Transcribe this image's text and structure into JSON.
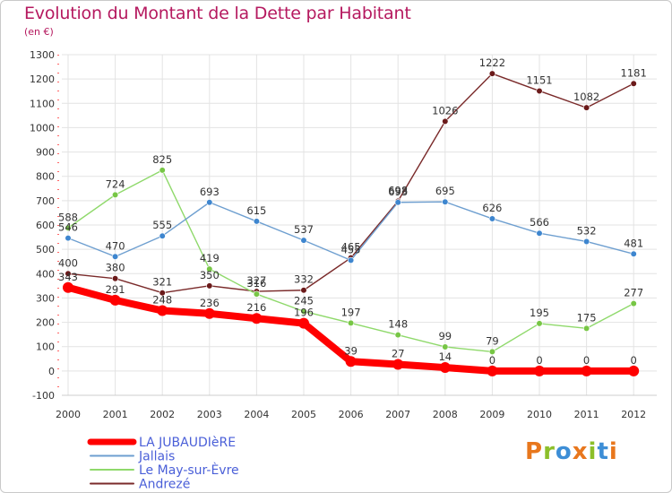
{
  "header": {
    "title": "Evolution du Montant de la Dette par Habitant",
    "subtitle": "(en €)"
  },
  "logo": {
    "text": "Proxiti",
    "colors": [
      "#e8771d",
      "#8cbf2a",
      "#3d8ed6",
      "#e8771d",
      "#8cbf2a",
      "#3d8ed6",
      "#e8771d"
    ]
  },
  "chart_data": {
    "type": "line",
    "x": [
      "2000",
      "2001",
      "2002",
      "2003",
      "2004",
      "2005",
      "2006",
      "2007",
      "2008",
      "2009",
      "2010",
      "2011",
      "2012"
    ],
    "ylim": [
      -100,
      1300
    ],
    "yticks": [
      -100,
      0,
      100,
      200,
      300,
      400,
      500,
      600,
      700,
      800,
      900,
      1000,
      1100,
      1200,
      1300
    ],
    "grid": true,
    "legend_position": "bottom-left",
    "series": [
      {
        "name": "Andrezé",
        "color": "#7a2a2a",
        "marker": "#6b1a1a",
        "values": [
          400,
          380,
          321,
          350,
          327,
          332,
          465,
          698,
          1026,
          1222,
          1151,
          1082,
          1181
        ],
        "labels": [
          "400",
          "380",
          "321",
          "350",
          "327",
          "332",
          "465",
          "698",
          "1026",
          "1222",
          "1151",
          "1082",
          "1181"
        ]
      },
      {
        "name": "Le May-sur-Èvre",
        "color": "#8fd96b",
        "marker": "#77c645",
        "values": [
          588,
          724,
          825,
          419,
          316,
          245,
          197,
          148,
          99,
          79,
          195,
          175,
          277
        ],
        "labels": [
          "588",
          "724",
          "825",
          "419",
          "316",
          "245",
          "197",
          "148",
          "99",
          "79",
          "195",
          "175",
          "277"
        ]
      },
      {
        "name": "Jallais",
        "color": "#6e9fd0",
        "marker": "#3e86cf",
        "values": [
          546,
          470,
          555,
          693,
          615,
          537,
          455,
          693,
          695,
          626,
          566,
          532,
          481
        ],
        "labels": [
          "546",
          "470",
          "555",
          "693",
          "615",
          "537",
          "455",
          "693",
          "695",
          "626",
          "566",
          "532",
          "481"
        ]
      },
      {
        "name": "LA JUBAUDIèRE",
        "color": "#ff0000",
        "marker": "#ff0000",
        "values": [
          343,
          291,
          248,
          236,
          216,
          196,
          39,
          27,
          14,
          0,
          0,
          0,
          0
        ],
        "labels": [
          "343",
          "291",
          "248",
          "236",
          "216",
          "196",
          "39",
          "27",
          "14",
          "0",
          "0",
          "0",
          "0"
        ]
      }
    ],
    "legend": [
      {
        "name": "LA JUBAUDIèRE",
        "color": "#ff0000",
        "text_color": "#4a5fd8",
        "thick": true
      },
      {
        "name": "Jallais",
        "color": "#6e9fd0",
        "text_color": "#4a5fd8",
        "thick": false
      },
      {
        "name": "Le May-sur-Èvre",
        "color": "#8fd96b",
        "text_color": "#4a5fd8",
        "thick": false
      },
      {
        "name": "Andrezé",
        "color": "#7a2a2a",
        "text_color": "#4a5fd8",
        "thick": false
      }
    ]
  }
}
